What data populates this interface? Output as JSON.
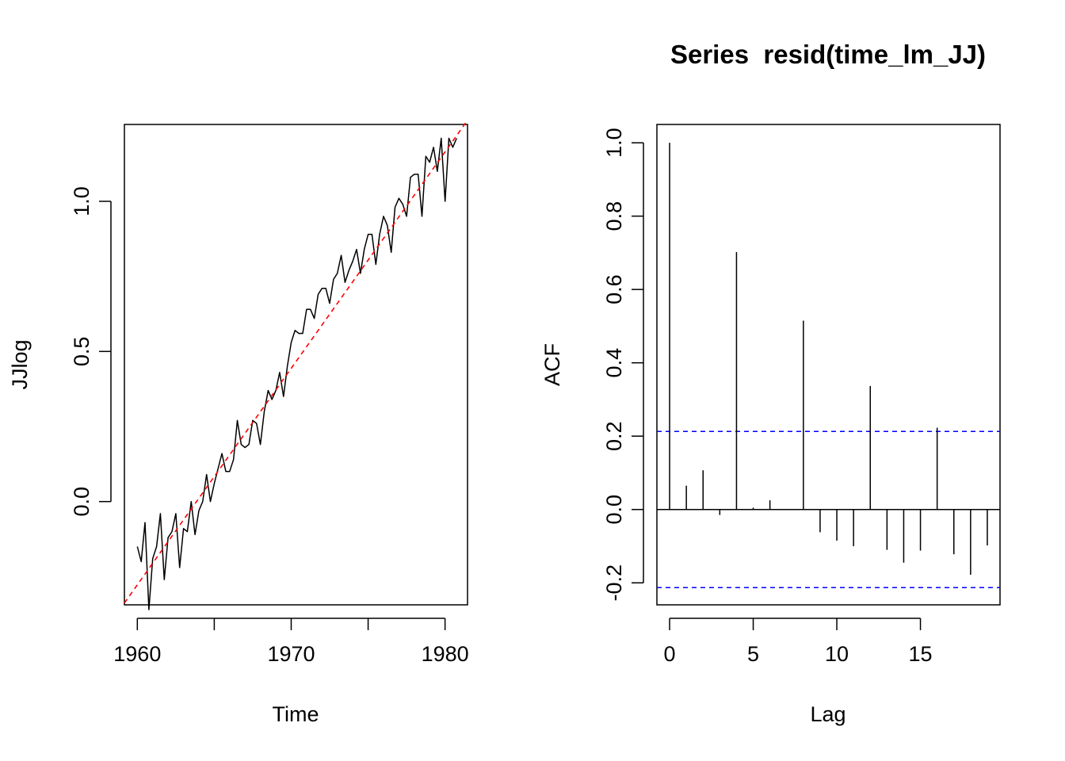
{
  "chart_data": [
    {
      "type": "line",
      "title": "",
      "xlabel": "Time",
      "ylabel": "JJlog",
      "xlim": [
        1959.16,
        1981.46
      ],
      "ylim": [
        -0.344,
        1.256
      ],
      "xticks": [
        1960,
        1965,
        1970,
        1975,
        1980
      ],
      "xtick_labels": [
        "1960",
        "1970",
        "1980"
      ],
      "yticks": [
        0.0,
        0.5,
        1.0
      ],
      "ytick_labels": [
        "0.0",
        "0.5",
        "1.0"
      ],
      "grid": false,
      "series": [
        {
          "color": "#000000",
          "style": "solid",
          "x": [
            1960.0,
            1960.25,
            1960.5,
            1960.75,
            1961.0,
            1961.25,
            1961.5,
            1961.75,
            1962.0,
            1962.25,
            1962.5,
            1962.75,
            1963.0,
            1963.25,
            1963.5,
            1963.75,
            1964.0,
            1964.25,
            1964.5,
            1964.75,
            1965.0,
            1965.25,
            1965.5,
            1965.75,
            1966.0,
            1966.25,
            1966.5,
            1966.75,
            1967.0,
            1967.25,
            1967.5,
            1967.75,
            1968.0,
            1968.25,
            1968.5,
            1968.75,
            1969.0,
            1969.25,
            1969.5,
            1969.75,
            1970.0,
            1970.25,
            1970.5,
            1970.75,
            1971.0,
            1971.25,
            1971.5,
            1971.75,
            1972.0,
            1972.25,
            1972.5,
            1972.75,
            1973.0,
            1973.25,
            1973.5,
            1973.75,
            1974.0,
            1974.25,
            1974.5,
            1974.75,
            1975.0,
            1975.25,
            1975.5,
            1975.75,
            1976.0,
            1976.25,
            1976.5,
            1976.75,
            1977.0,
            1977.25,
            1977.5,
            1977.75,
            1978.0,
            1978.25,
            1978.5,
            1978.75,
            1979.0,
            1979.25,
            1979.5,
            1979.75,
            1980.0,
            1980.25,
            1980.5,
            1980.75
          ],
          "y": [
            -0.15,
            -0.2,
            -0.07,
            -0.36,
            -0.19,
            -0.15,
            -0.04,
            -0.26,
            -0.12,
            -0.1,
            -0.04,
            -0.22,
            -0.09,
            -0.1,
            0.0,
            -0.11,
            -0.03,
            0.0,
            0.09,
            0.0,
            0.06,
            0.11,
            0.16,
            0.1,
            0.1,
            0.14,
            0.27,
            0.19,
            0.18,
            0.19,
            0.27,
            0.26,
            0.19,
            0.3,
            0.37,
            0.34,
            0.37,
            0.43,
            0.35,
            0.45,
            0.53,
            0.57,
            0.56,
            0.56,
            0.64,
            0.64,
            0.61,
            0.69,
            0.71,
            0.71,
            0.66,
            0.74,
            0.76,
            0.82,
            0.73,
            0.77,
            0.8,
            0.84,
            0.76,
            0.84,
            0.89,
            0.89,
            0.79,
            0.89,
            0.95,
            0.92,
            0.83,
            0.98,
            1.01,
            0.99,
            0.95,
            1.08,
            1.09,
            1.09,
            0.95,
            1.15,
            1.13,
            1.18,
            1.1,
            1.21,
            1.0,
            1.21,
            1.18,
            1.21
          ]
        },
        {
          "color": "#ff0000",
          "style": "dashed",
          "x": [
            1959.16,
            1981.46
          ],
          "y": [
            -0.338,
            1.27
          ]
        }
      ]
    },
    {
      "type": "bar",
      "title": "Series  resid(time_lm_JJ)",
      "xlabel": "Lag",
      "ylabel": "ACF",
      "xlim": [
        -0.76,
        19.76
      ],
      "ylim": [
        -0.26,
        1.05
      ],
      "xticks": [
        0,
        5,
        10,
        15
      ],
      "xtick_labels": [
        "0",
        "5",
        "10",
        "15"
      ],
      "yticks": [
        -0.2,
        0.0,
        0.2,
        0.4,
        0.6,
        0.8,
        1.0
      ],
      "ytick_labels": [
        "-0.2",
        "0.0",
        "0.2",
        "0.4",
        "0.6",
        "0.8",
        "1.0"
      ],
      "grid": false,
      "lags": [
        0,
        1,
        2,
        3,
        4,
        5,
        6,
        7,
        8,
        9,
        10,
        11,
        12,
        13,
        14,
        15,
        16,
        17,
        18,
        19
      ],
      "values": [
        1.0,
        0.065,
        0.107,
        -0.015,
        0.702,
        0.005,
        0.025,
        0.0,
        0.515,
        -0.062,
        -0.085,
        -0.1,
        0.337,
        -0.11,
        -0.145,
        -0.112,
        0.223,
        -0.122,
        -0.178,
        -0.098
      ],
      "confidence_band": [
        -0.213,
        0.213
      ],
      "band_color": "#0000ff"
    }
  ]
}
